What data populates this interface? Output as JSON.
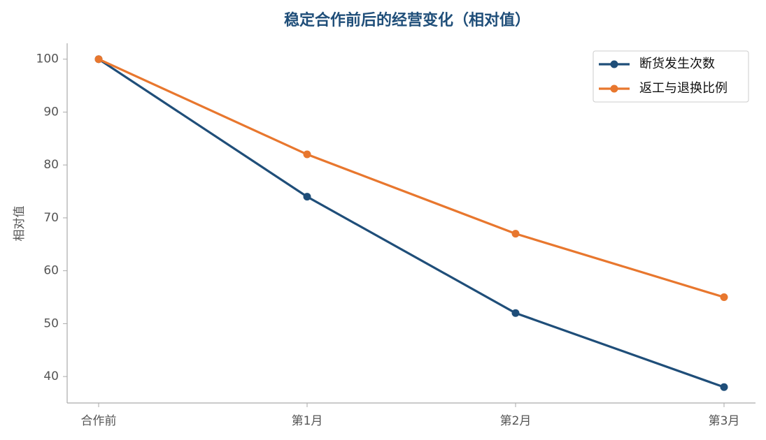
{
  "chart_data": {
    "type": "line",
    "title": "稳定合作前后的经营变化（相对值）",
    "y_label": "相对值",
    "categories": [
      "合作前",
      "第1月",
      "第2月",
      "第3月"
    ],
    "series": [
      {
        "name": "断货发生次数",
        "color": "#1f4e79",
        "values": [
          100,
          74,
          52,
          38
        ]
      },
      {
        "name": "返工与退换比例",
        "color": "#e8772e",
        "values": [
          100,
          82,
          67,
          55
        ]
      }
    ],
    "ylim": [
      35,
      103
    ],
    "yticks": [
      40,
      50,
      60,
      70,
      80,
      90,
      100
    ],
    "grid": false,
    "legend": "upper right"
  }
}
